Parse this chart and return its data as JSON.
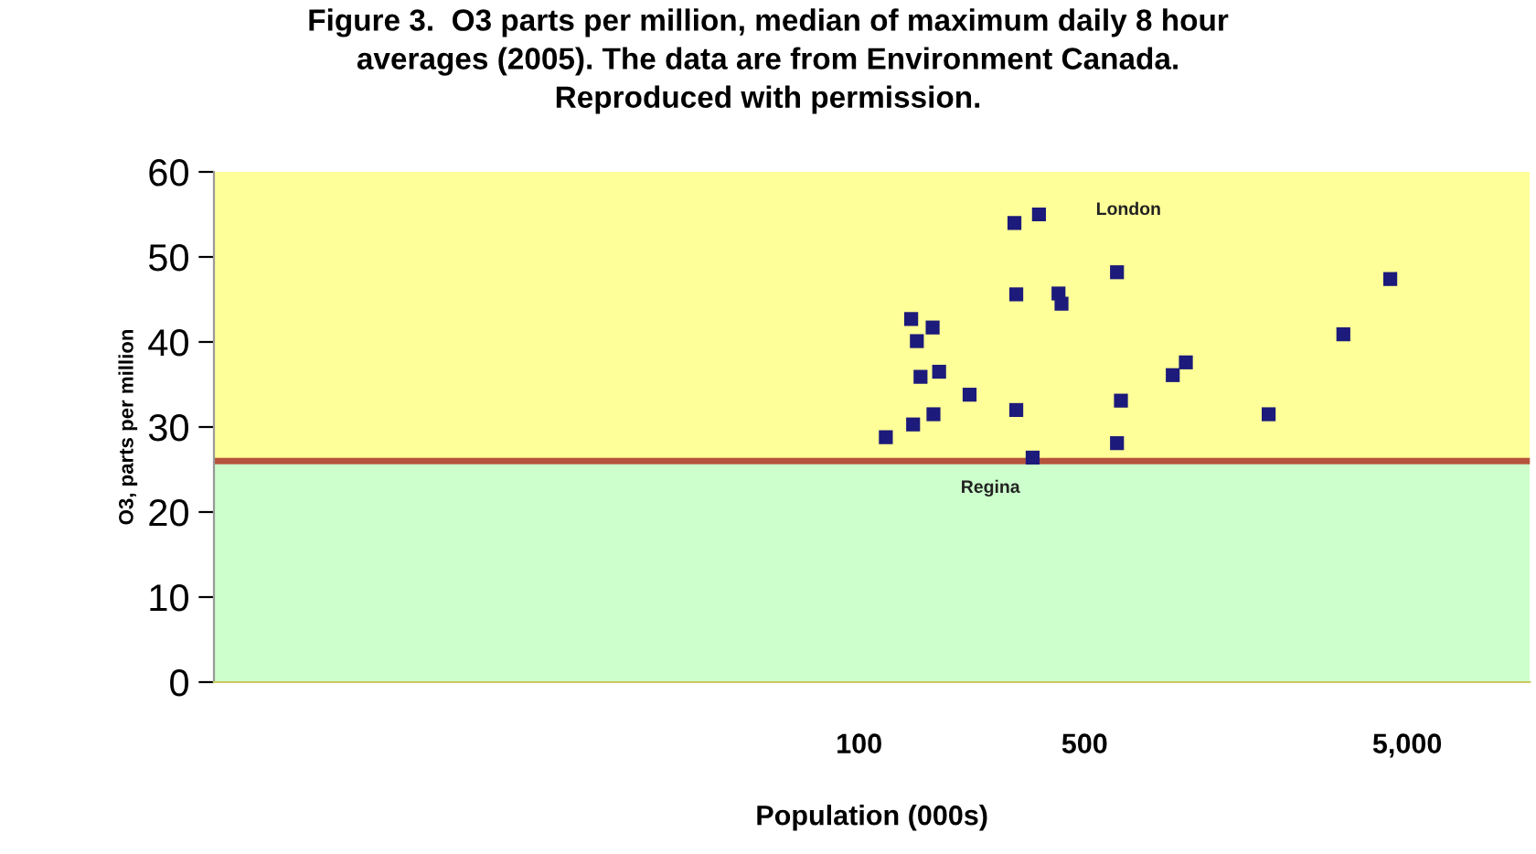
{
  "chart_data": {
    "type": "scatter",
    "title": "Figure 3.  O3 parts per million, median of maximum daily 8 hour\naverages (2005). The data are from Environment Canada.\nReproduced with permission.",
    "xlabel": "Population (000s)",
    "ylabel": "O3, parts per million",
    "log": "x",
    "xlim": [
      1,
      12000
    ],
    "xticks": [
      100,
      500,
      {
        "value": 5000,
        "label": "5,000"
      }
    ],
    "ylim": [
      0,
      60
    ],
    "yticks": [
      0,
      10,
      20,
      30,
      40,
      50,
      60
    ],
    "marker": "square",
    "grid": false,
    "legend": false,
    "series": [
      {
        "color": "#1c1a7a",
        "x": [
          303,
          361,
          630,
          307,
          415,
          424,
          145,
          169,
          151,
          155,
          177,
          220,
          307,
          121,
          147,
          170,
          648,
          630,
          345,
          938,
          1030,
          4430,
          3170,
          1860
        ],
        "values": [
          54.0,
          55.0,
          48.2,
          45.6,
          45.7,
          44.5,
          42.7,
          41.7,
          40.1,
          35.9,
          36.5,
          33.8,
          32.0,
          28.8,
          30.3,
          31.5,
          33.1,
          28.1,
          26.4,
          36.1,
          37.6,
          47.4,
          40.9,
          31.5
        ]
      }
    ],
    "ref_lines": [
      {
        "axis": "y",
        "value": 26,
        "color": "#b5533c"
      }
    ],
    "bands": [
      {
        "axis": "y",
        "from": 0,
        "to": 26,
        "color": "#ccffcc"
      },
      {
        "axis": "y",
        "from": 26,
        "to": 60,
        "color": "#ffff99"
      }
    ],
    "annotations": [
      "London",
      "Regina"
    ]
  }
}
